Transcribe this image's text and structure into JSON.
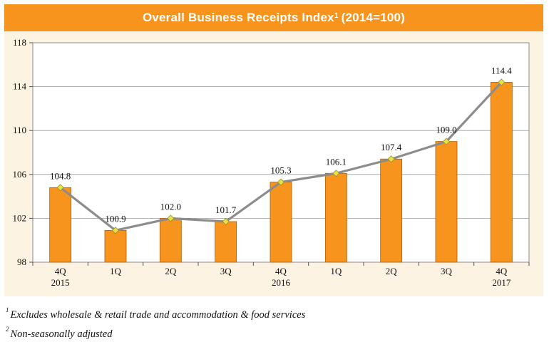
{
  "title": {
    "text": "Overall Business Receipts Index",
    "superscript": "1",
    "suffix": "(2014=100)"
  },
  "footnotes": [
    {
      "mark": "1",
      "text": "Excludes wholesale & retail trade and accommodation & food services"
    },
    {
      "mark": "2",
      "text": "Non-seasonally adjusted"
    }
  ],
  "colors": {
    "bar": "#f7941d",
    "bar_stroke": "#b35a00",
    "line": "#8c8c8c",
    "marker": "#e8e04a",
    "marker_stroke": "#9a8f1c",
    "title_bg": "#f7941d",
    "plot_bg": "#ffffff",
    "frame_bg": "#fdf3e3"
  },
  "chart_data": {
    "type": "bar",
    "title": "Overall Business Receipts Index1 (2014=100)",
    "xlabel": "",
    "ylabel": "",
    "ylim": [
      98,
      118
    ],
    "yticks": [
      98,
      102,
      106,
      110,
      114,
      118
    ],
    "grid": true,
    "categories": [
      {
        "quarter": "4Q",
        "year": "2015"
      },
      {
        "quarter": "1Q",
        "year": ""
      },
      {
        "quarter": "2Q",
        "year": ""
      },
      {
        "quarter": "3Q",
        "year": ""
      },
      {
        "quarter": "4Q",
        "year": "2016"
      },
      {
        "quarter": "1Q",
        "year": ""
      },
      {
        "quarter": "2Q",
        "year": ""
      },
      {
        "quarter": "3Q",
        "year": ""
      },
      {
        "quarter": "4Q",
        "year": "2017"
      }
    ],
    "values": [
      104.8,
      100.9,
      102.0,
      101.7,
      105.3,
      106.1,
      107.4,
      109.0,
      114.4
    ],
    "labels": [
      "104.8",
      "100.9",
      "102.0",
      "101.7",
      "105.3",
      "106.1",
      "107.4",
      "109.0",
      "114.4"
    ],
    "overlay": "line"
  }
}
